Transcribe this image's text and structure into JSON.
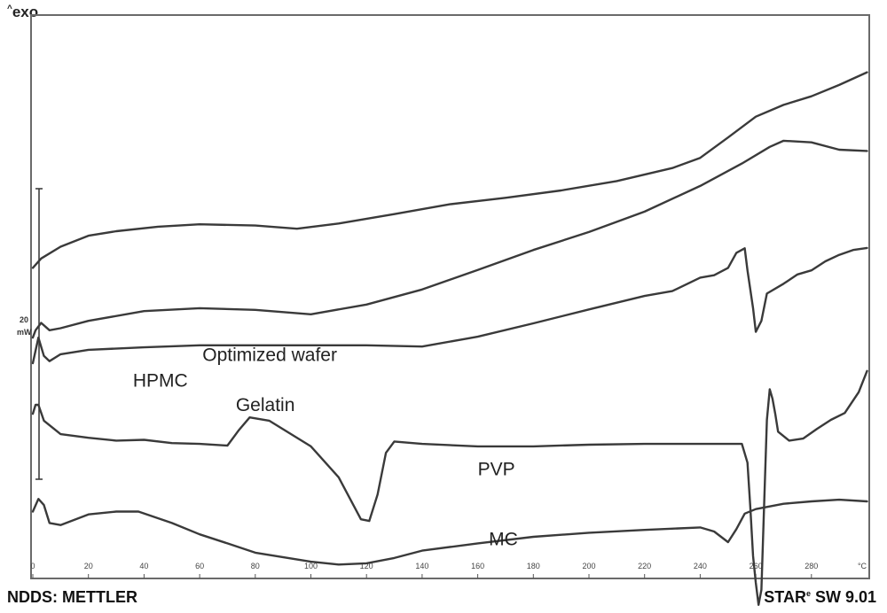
{
  "header": {
    "signal_prefix": "^",
    "signal_label": "exo"
  },
  "scale_bar": {
    "value": "20",
    "unit": "mW"
  },
  "footer": {
    "left": "NDDS: METTLER",
    "right_brand": "STAR",
    "right_mark": "e",
    "right_version": " SW 9.01"
  },
  "chart_data": {
    "type": "line",
    "title": "",
    "xlabel": "°C",
    "ylabel": "^exo",
    "xlim": [
      0,
      300
    ],
    "x_ticks": [
      0,
      20,
      40,
      60,
      80,
      100,
      120,
      140,
      160,
      180,
      200,
      220,
      240,
      260,
      280
    ],
    "grid": false,
    "series": [
      {
        "name": "Gelatin",
        "label_at": [
          73,
          40.9
        ],
        "points": [
          [
            0,
            76.0
          ],
          [
            3,
            78.3
          ],
          [
            10,
            81.2
          ],
          [
            20,
            83.9
          ],
          [
            30,
            85.0
          ],
          [
            45,
            86.1
          ],
          [
            60,
            86.7
          ],
          [
            80,
            86.4
          ],
          [
            95,
            85.6
          ],
          [
            110,
            86.9
          ],
          [
            130,
            89.2
          ],
          [
            150,
            91.6
          ],
          [
            170,
            93.2
          ],
          [
            190,
            95.0
          ],
          [
            210,
            97.3
          ],
          [
            230,
            100.5
          ],
          [
            240,
            103.0
          ],
          [
            250,
            108.0
          ],
          [
            260,
            113.1
          ],
          [
            270,
            116.0
          ],
          [
            280,
            118.1
          ],
          [
            290,
            120.9
          ],
          [
            300,
            124.0
          ]
        ]
      },
      {
        "name": "Optimized wafer",
        "label_at": [
          61,
          53.1
        ],
        "points": [
          [
            0,
            58.9
          ],
          [
            1,
            60.7
          ],
          [
            3,
            62.5
          ],
          [
            6,
            60.7
          ],
          [
            10,
            61.2
          ],
          [
            20,
            63.0
          ],
          [
            40,
            65.4
          ],
          [
            60,
            66.1
          ],
          [
            80,
            65.7
          ],
          [
            100,
            64.6
          ],
          [
            120,
            67.0
          ],
          [
            140,
            70.7
          ],
          [
            160,
            75.5
          ],
          [
            180,
            80.4
          ],
          [
            200,
            84.8
          ],
          [
            220,
            89.8
          ],
          [
            240,
            96.1
          ],
          [
            255,
            101.6
          ],
          [
            265,
            105.7
          ],
          [
            270,
            107.2
          ],
          [
            280,
            106.8
          ],
          [
            290,
            105.0
          ],
          [
            300,
            104.7
          ]
        ]
      },
      {
        "name": "HPMC",
        "label_at": [
          36,
          46.9
        ],
        "points": [
          [
            0,
            52.6
          ],
          [
            2,
            58.9
          ],
          [
            4,
            54.4
          ],
          [
            6,
            53.1
          ],
          [
            10,
            54.8
          ],
          [
            20,
            55.9
          ],
          [
            40,
            56.5
          ],
          [
            60,
            57.0
          ],
          [
            80,
            57.0
          ],
          [
            100,
            57.0
          ],
          [
            120,
            57.0
          ],
          [
            140,
            56.7
          ],
          [
            160,
            59.1
          ],
          [
            180,
            62.4
          ],
          [
            200,
            65.8
          ],
          [
            220,
            69.1
          ],
          [
            230,
            70.3
          ],
          [
            240,
            73.6
          ],
          [
            245,
            74.2
          ],
          [
            250,
            76.0
          ],
          [
            253,
            79.7
          ],
          [
            256,
            80.8
          ],
          [
            257,
            75.4
          ],
          [
            259,
            66.1
          ],
          [
            260,
            60.3
          ],
          [
            262,
            63.0
          ],
          [
            264,
            69.7
          ],
          [
            270,
            72.1
          ],
          [
            275,
            74.4
          ],
          [
            280,
            75.4
          ],
          [
            285,
            77.6
          ],
          [
            290,
            79.2
          ],
          [
            295,
            80.4
          ],
          [
            300,
            80.9
          ]
        ]
      },
      {
        "name": "PVP",
        "label_at": [
          160,
          25.1
        ],
        "points": [
          [
            0,
            40.2
          ],
          [
            1,
            42.4
          ],
          [
            2,
            42.4
          ],
          [
            4,
            38.5
          ],
          [
            10,
            35.2
          ],
          [
            20,
            34.3
          ],
          [
            30,
            33.6
          ],
          [
            40,
            33.8
          ],
          [
            50,
            33.0
          ],
          [
            60,
            32.8
          ],
          [
            70,
            32.4
          ],
          [
            74,
            36.1
          ],
          [
            78,
            39.3
          ],
          [
            85,
            38.5
          ],
          [
            100,
            32.2
          ],
          [
            110,
            24.6
          ],
          [
            118,
            14.3
          ],
          [
            121,
            13.9
          ],
          [
            124,
            20.4
          ],
          [
            127,
            30.6
          ],
          [
            130,
            33.4
          ],
          [
            140,
            32.8
          ],
          [
            160,
            32.2
          ],
          [
            180,
            32.2
          ],
          [
            200,
            32.6
          ],
          [
            220,
            32.8
          ],
          [
            240,
            32.8
          ],
          [
            255,
            32.8
          ],
          [
            257,
            28.2
          ],
          [
            258,
            17.6
          ],
          [
            259,
            5.3
          ],
          [
            260,
            -1.3
          ],
          [
            261,
            -6.7
          ],
          [
            262,
            -3.0
          ],
          [
            263,
            18.0
          ],
          [
            264,
            38.7
          ],
          [
            265,
            46.2
          ],
          [
            266,
            43.9
          ],
          [
            267,
            40.2
          ],
          [
            268,
            35.8
          ],
          [
            272,
            33.6
          ],
          [
            277,
            34.1
          ],
          [
            282,
            36.5
          ],
          [
            287,
            38.7
          ],
          [
            292,
            40.4
          ],
          [
            297,
            45.5
          ],
          [
            300,
            50.7
          ]
        ]
      },
      {
        "name": "MC",
        "label_at": [
          164,
          7.9
        ],
        "points": [
          [
            0,
            16.2
          ],
          [
            2,
            19.3
          ],
          [
            4,
            17.8
          ],
          [
            6,
            13.4
          ],
          [
            10,
            12.9
          ],
          [
            20,
            15.5
          ],
          [
            30,
            16.2
          ],
          [
            38,
            16.2
          ],
          [
            50,
            13.4
          ],
          [
            60,
            10.6
          ],
          [
            70,
            8.4
          ],
          [
            80,
            6.1
          ],
          [
            100,
            3.9
          ],
          [
            110,
            3.2
          ],
          [
            120,
            3.5
          ],
          [
            130,
            4.8
          ],
          [
            140,
            6.6
          ],
          [
            160,
            8.4
          ],
          [
            180,
            10.0
          ],
          [
            200,
            11.0
          ],
          [
            220,
            11.7
          ],
          [
            240,
            12.3
          ],
          [
            245,
            11.3
          ],
          [
            250,
            8.7
          ],
          [
            253,
            11.9
          ],
          [
            256,
            15.7
          ],
          [
            260,
            16.8
          ],
          [
            270,
            18.1
          ],
          [
            280,
            18.7
          ],
          [
            290,
            19.1
          ],
          [
            300,
            18.7
          ]
        ]
      }
    ]
  }
}
